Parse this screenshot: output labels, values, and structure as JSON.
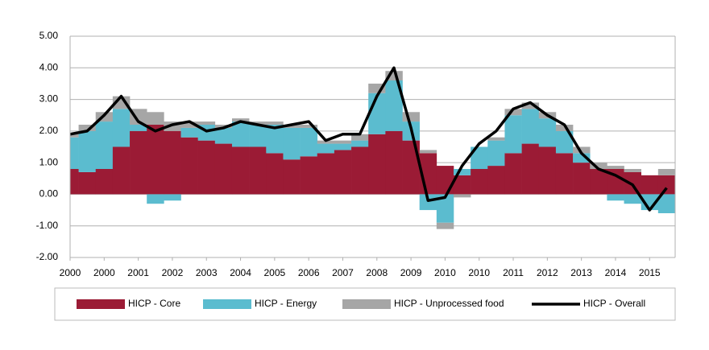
{
  "chart_data": {
    "type": "stacked-bar-line",
    "x": [
      0,
      0.5,
      1,
      1.5,
      2,
      2.5,
      3,
      3.5,
      4,
      4.5,
      5,
      5.5,
      6,
      6.5,
      7,
      7.5,
      8,
      8.5,
      9,
      9.5,
      10,
      10.5,
      11,
      11.5,
      12,
      12.5,
      13,
      13.5,
      14,
      14.5,
      15,
      15.5,
      16,
      16.5,
      17,
      17.5
    ],
    "xlim": [
      0,
      17.75
    ],
    "xticks": [
      {
        "value": 0,
        "label": "2000"
      },
      {
        "value": 1,
        "label": "2000"
      },
      {
        "value": 2,
        "label": "2001"
      },
      {
        "value": 3,
        "label": "2002"
      },
      {
        "value": 4,
        "label": "2003"
      },
      {
        "value": 5,
        "label": "2004"
      },
      {
        "value": 6,
        "label": "2005"
      },
      {
        "value": 7,
        "label": "2006"
      },
      {
        "value": 8,
        "label": "2007"
      },
      {
        "value": 9,
        "label": "2008"
      },
      {
        "value": 10,
        "label": "2009"
      },
      {
        "value": 11,
        "label": "2010"
      },
      {
        "value": 12,
        "label": "2010"
      },
      {
        "value": 13,
        "label": "2011"
      },
      {
        "value": 14,
        "label": "2012"
      },
      {
        "value": 15,
        "label": "2013"
      },
      {
        "value": 16,
        "label": "2014"
      },
      {
        "value": 17,
        "label": "2015"
      }
    ],
    "ylim": [
      -2,
      5
    ],
    "yticks": [
      {
        "value": -2,
        "label": "-2.00"
      },
      {
        "value": -1,
        "label": "-1.00"
      },
      {
        "value": 0,
        "label": "0.00"
      },
      {
        "value": 1,
        "label": "1.00"
      },
      {
        "value": 2,
        "label": "2.00"
      },
      {
        "value": 3,
        "label": "3.00"
      },
      {
        "value": 4,
        "label": "4.00"
      },
      {
        "value": 5,
        "label": "5.00"
      }
    ],
    "grid": true,
    "series": [
      {
        "name": "HICP - Core",
        "color": "#9b1b35",
        "values": [
          0.8,
          0.7,
          0.8,
          1.5,
          2.0,
          2.2,
          2.0,
          1.8,
          1.7,
          1.6,
          1.5,
          1.5,
          1.3,
          1.1,
          1.2,
          1.3,
          1.4,
          1.5,
          1.9,
          2.0,
          1.7,
          1.3,
          0.9,
          0.6,
          0.8,
          0.9,
          1.3,
          1.6,
          1.5,
          1.3,
          1.0,
          0.8,
          0.8,
          0.7,
          0.6,
          0.6
        ]
      },
      {
        "name": "HICP - Energy",
        "color": "#5bbccf",
        "values": [
          1.0,
          1.3,
          1.5,
          1.2,
          0.2,
          -0.3,
          -0.2,
          0.3,
          0.5,
          0.5,
          0.8,
          0.7,
          0.9,
          1.0,
          0.9,
          0.3,
          0.2,
          0.2,
          1.3,
          1.6,
          0.6,
          -0.5,
          -0.9,
          0.2,
          0.7,
          0.8,
          1.2,
          1.1,
          0.9,
          0.7,
          0.3,
          0.0,
          -0.2,
          -0.3,
          -0.5,
          -0.6
        ]
      },
      {
        "name": "HICP - Unprocessed food",
        "color": "#a6a6a6",
        "values": [
          0.1,
          0.2,
          0.3,
          0.4,
          0.5,
          0.4,
          0.3,
          0.2,
          0.1,
          0.1,
          0.1,
          0.1,
          0.1,
          0.1,
          0.1,
          0.1,
          0.1,
          0.2,
          0.3,
          0.3,
          0.3,
          0.1,
          -0.2,
          -0.1,
          0.0,
          0.1,
          0.2,
          0.2,
          0.2,
          0.2,
          0.2,
          0.2,
          0.1,
          0.1,
          0.0,
          0.2
        ]
      },
      {
        "name": "HICP - Overall",
        "color": "#000000",
        "kind": "line",
        "values": [
          1.9,
          2.0,
          2.5,
          3.1,
          2.3,
          2.0,
          2.2,
          2.3,
          2.0,
          2.1,
          2.3,
          2.2,
          2.1,
          2.2,
          2.3,
          1.7,
          1.9,
          1.9,
          3.1,
          4.0,
          2.1,
          -0.2,
          -0.1,
          0.9,
          1.6,
          2.0,
          2.7,
          2.9,
          2.5,
          2.2,
          1.3,
          0.8,
          0.6,
          0.3,
          -0.5,
          0.2
        ]
      }
    ]
  }
}
